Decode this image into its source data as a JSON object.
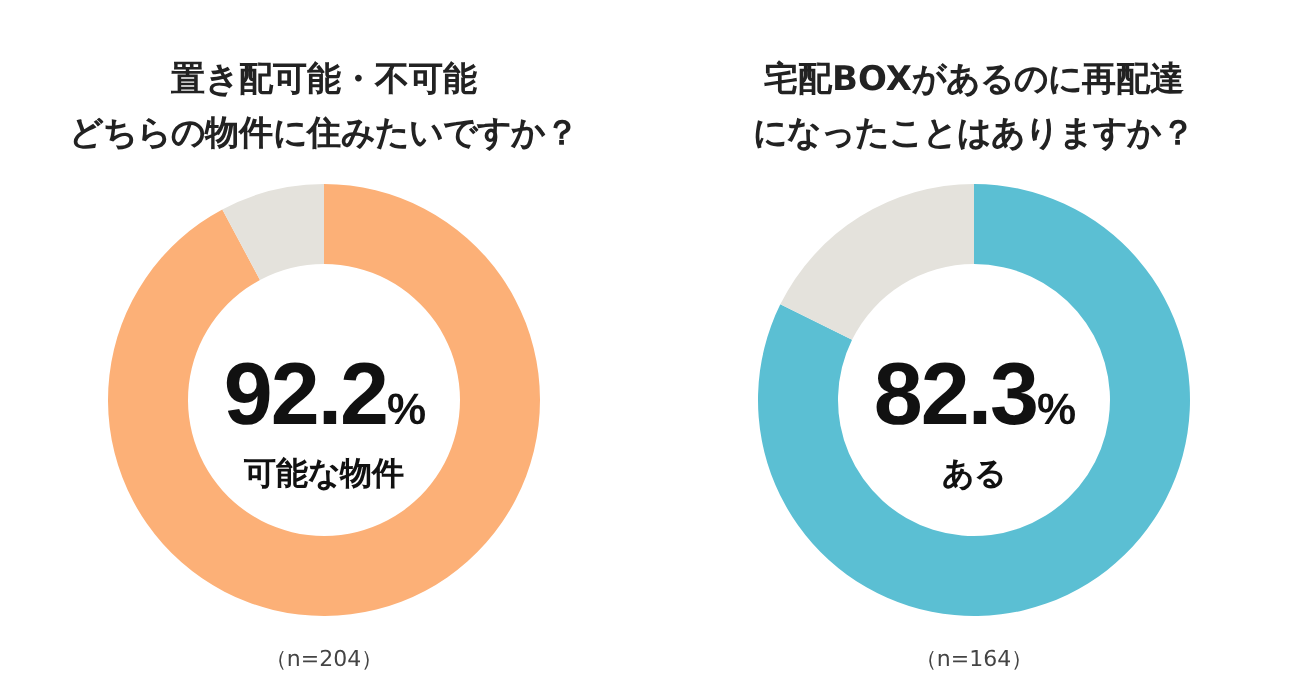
{
  "chart_data": [
    {
      "type": "donut",
      "title": "置き配可能・不可能どちらの物件に住みたいですか？",
      "categories": [
        "可能な物件",
        null
      ],
      "values": [
        92.2,
        7.8
      ],
      "colors": [
        "#fcb077",
        "#e4e2dc"
      ],
      "value_labels": [
        "92.2%",
        null
      ],
      "annotations": [
        "（n=204）"
      ]
    },
    {
      "type": "donut",
      "title": "宅配BOXがあるのに再配達になったことはありますか？",
      "categories": [
        "ある",
        null
      ],
      "values": [
        82.3,
        17.7
      ],
      "colors": [
        "#5bbfd3",
        "#e4e2dc"
      ],
      "value_labels": [
        "82.3%",
        null
      ],
      "annotations": [
        "（n=164）"
      ]
    }
  ]
}
